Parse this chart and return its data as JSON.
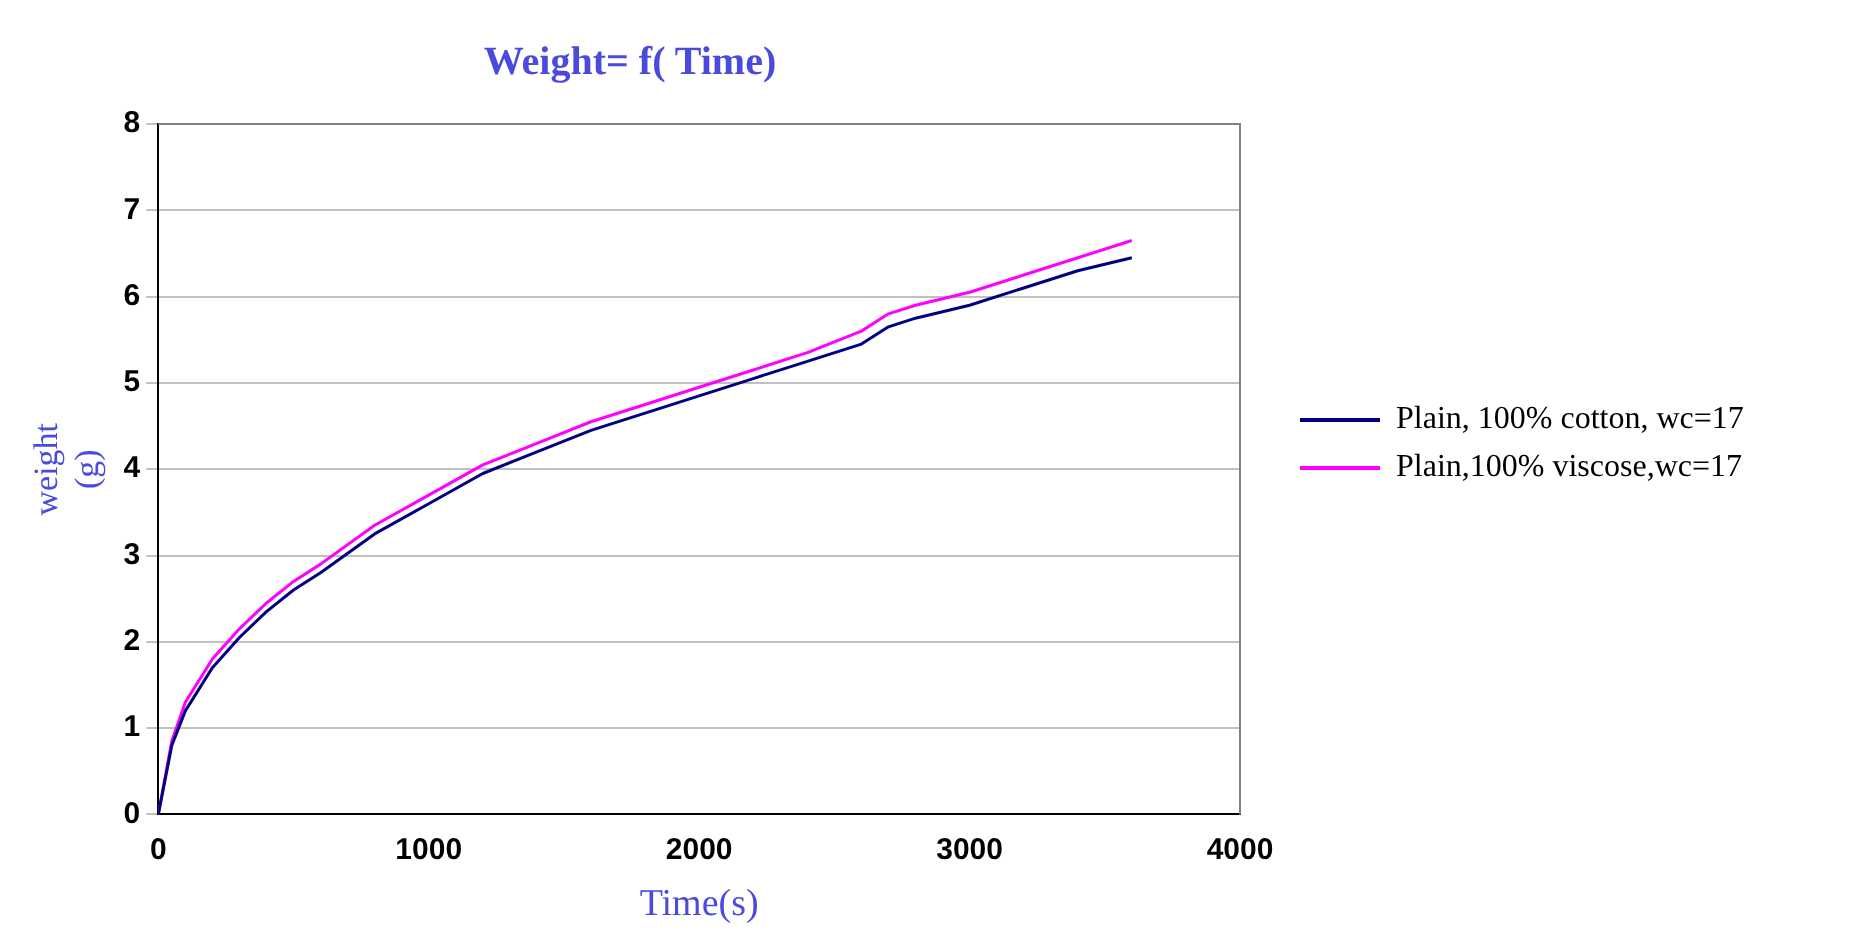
{
  "chart_data": {
    "type": "line",
    "title": "Weight= f( Time)",
    "xlabel": "Time(s)",
    "ylabel": "weight\n(g)",
    "x": [
      0,
      50,
      100,
      200,
      300,
      400,
      500,
      600,
      800,
      1000,
      1200,
      1400,
      1600,
      1800,
      2000,
      2200,
      2400,
      2600,
      2700,
      2800,
      3000,
      3200,
      3400,
      3600
    ],
    "series": [
      {
        "name": "Plain, 100% cotton, wc=17",
        "color": "#000080",
        "values": [
          0,
          0.8,
          1.2,
          1.7,
          2.05,
          2.35,
          2.6,
          2.8,
          3.25,
          3.6,
          3.95,
          4.2,
          4.45,
          4.65,
          4.85,
          5.05,
          5.25,
          5.45,
          5.65,
          5.75,
          5.9,
          6.1,
          6.3,
          6.45
        ]
      },
      {
        "name": "Plain,100% viscose,wc=17",
        "color": "#ff00ff",
        "values": [
          0,
          0.85,
          1.3,
          1.8,
          2.15,
          2.45,
          2.7,
          2.9,
          3.35,
          3.7,
          4.05,
          4.3,
          4.55,
          4.75,
          4.95,
          5.15,
          5.35,
          5.6,
          5.8,
          5.9,
          6.05,
          6.25,
          6.45,
          6.65
        ]
      }
    ],
    "xlim": [
      0,
      4000
    ],
    "xticks": [
      0,
      1000,
      2000,
      3000,
      4000
    ],
    "ylim": [
      0,
      8
    ],
    "yticks": [
      0,
      1,
      2,
      3,
      4,
      5,
      6,
      7,
      8
    ],
    "grid": "y",
    "legend": "right",
    "marker": "none",
    "line_style": "solid"
  }
}
